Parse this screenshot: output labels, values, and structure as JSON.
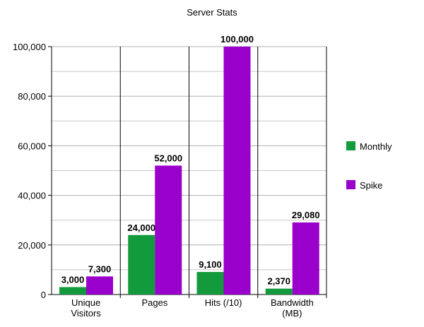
{
  "chart_data": {
    "type": "bar",
    "title": "Server Stats",
    "categories": [
      "Unique\nVisitors",
      "Pages",
      "Hits (/10)",
      "Bandwidth\n(MB)"
    ],
    "series": [
      {
        "name": "Monthly",
        "color": "#129a3c",
        "values": [
          3000,
          24000,
          9100,
          2370
        ],
        "value_labels": [
          "3,000",
          "24,000",
          "9,100",
          "2,370"
        ]
      },
      {
        "name": "Spike",
        "color": "#9900cc",
        "values": [
          7300,
          52000,
          100000,
          29080
        ],
        "value_labels": [
          "7,300",
          "52,000",
          "100,000",
          "29,080"
        ]
      }
    ],
    "ylim": [
      0,
      100000
    ],
    "yticks": [
      0,
      {
        "value": 20000,
        "label": "20,000"
      },
      {
        "value": 40000,
        "label": "40,000"
      },
      {
        "value": 60000,
        "label": "60,000"
      },
      {
        "value": 80000,
        "label": "80,000"
      },
      {
        "value": 100000,
        "label": "100,000"
      }
    ],
    "minor_yticks": [
      10000,
      30000,
      50000,
      70000,
      90000
    ],
    "grid": true,
    "legend": "right"
  }
}
